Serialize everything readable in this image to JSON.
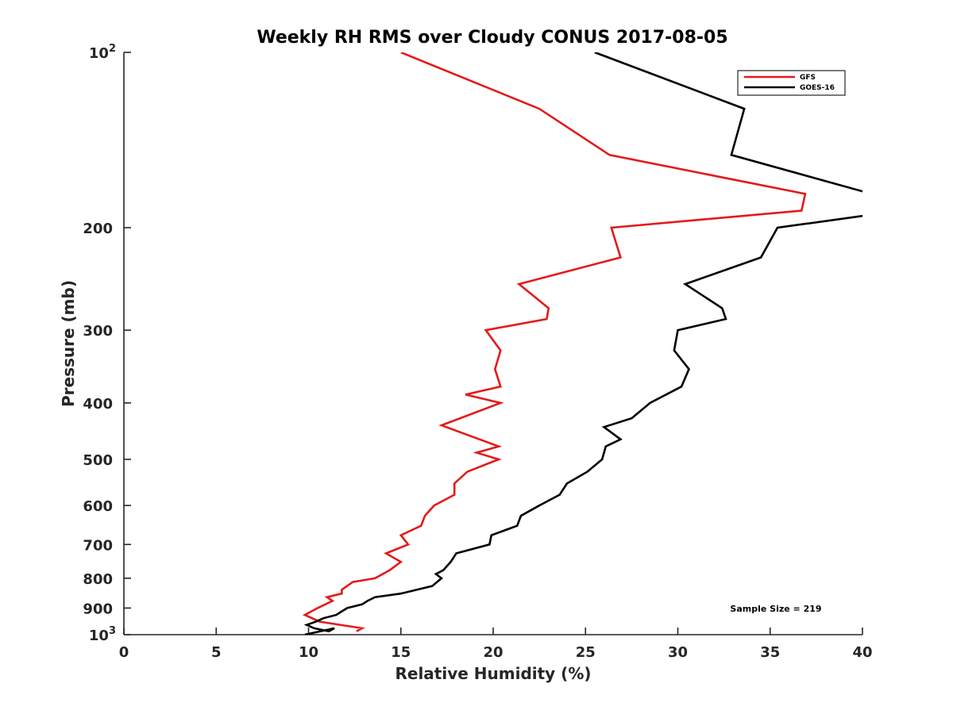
{
  "chart_data": {
    "type": "line",
    "title": "Weekly RH RMS over Cloudy CONUS 2017-08-05",
    "xlabel": "Relative Humidity (%)",
    "ylabel": "Pressure (mb)",
    "xlim": [
      0,
      40
    ],
    "ylim": [
      100,
      1000
    ],
    "yscale": "log",
    "y_reversed": true,
    "grid": false,
    "legend_position": "top-right",
    "x_ticks": [
      "0",
      "5",
      "10",
      "15",
      "20",
      "25",
      "30",
      "35",
      "40"
    ],
    "y_ticks": [
      {
        "value": 100,
        "base": "10",
        "exp": "2"
      },
      {
        "value": 200,
        "label": "200"
      },
      {
        "value": 300,
        "label": "300"
      },
      {
        "value": 400,
        "label": "400"
      },
      {
        "value": 500,
        "label": "500"
      },
      {
        "value": 600,
        "label": "600"
      },
      {
        "value": 700,
        "label": "700"
      },
      {
        "value": 800,
        "label": "800"
      },
      {
        "value": 900,
        "label": "900"
      },
      {
        "value": 1000,
        "base": "10",
        "exp": "3"
      }
    ],
    "annotation": "Sample Size = 219",
    "series": [
      {
        "name": "GFS",
        "color": "#e41a1a",
        "points": [
          [
            15.0,
            100
          ],
          [
            22.5,
            125
          ],
          [
            26.3,
            150
          ],
          [
            36.9,
            175
          ],
          [
            36.7,
            187
          ],
          [
            26.4,
            200
          ],
          [
            26.9,
            225
          ],
          [
            21.4,
            250
          ],
          [
            23.0,
            275
          ],
          [
            22.9,
            287
          ],
          [
            19.6,
            300
          ],
          [
            20.4,
            325
          ],
          [
            20.1,
            350
          ],
          [
            20.4,
            375
          ],
          [
            18.5,
            387
          ],
          [
            20.4,
            400
          ],
          [
            17.2,
            437
          ],
          [
            20.3,
            475
          ],
          [
            19.1,
            487
          ],
          [
            20.3,
            500
          ],
          [
            18.6,
            525
          ],
          [
            17.9,
            550
          ],
          [
            17.9,
            575
          ],
          [
            16.8,
            600
          ],
          [
            16.3,
            625
          ],
          [
            16.1,
            650
          ],
          [
            15.0,
            675
          ],
          [
            15.4,
            700
          ],
          [
            14.2,
            725
          ],
          [
            15.0,
            750
          ],
          [
            14.4,
            775
          ],
          [
            13.6,
            800
          ],
          [
            12.4,
            812
          ],
          [
            11.8,
            837
          ],
          [
            11.8,
            850
          ],
          [
            11.0,
            862
          ],
          [
            11.3,
            875
          ],
          [
            10.5,
            900
          ],
          [
            9.8,
            925
          ],
          [
            10.6,
            950
          ],
          [
            12.9,
            975
          ],
          [
            12.6,
            987
          ]
        ]
      },
      {
        "name": "GOES-16",
        "color": "#000000",
        "points": [
          [
            25.5,
            100
          ],
          [
            33.6,
            125
          ],
          [
            32.9,
            150
          ],
          [
            40.5,
            175
          ],
          [
            40.5,
            190
          ],
          [
            35.4,
            200
          ],
          [
            34.5,
            225
          ],
          [
            30.4,
            250
          ],
          [
            32.4,
            275
          ],
          [
            32.6,
            287
          ],
          [
            30.0,
            300
          ],
          [
            29.8,
            325
          ],
          [
            30.6,
            350
          ],
          [
            30.2,
            375
          ],
          [
            28.5,
            400
          ],
          [
            27.5,
            425
          ],
          [
            26.0,
            440
          ],
          [
            26.9,
            462
          ],
          [
            26.1,
            475
          ],
          [
            25.9,
            500
          ],
          [
            25.1,
            525
          ],
          [
            24.0,
            550
          ],
          [
            23.6,
            575
          ],
          [
            22.5,
            600
          ],
          [
            21.5,
            625
          ],
          [
            21.3,
            650
          ],
          [
            19.9,
            675
          ],
          [
            19.8,
            700
          ],
          [
            18.0,
            725
          ],
          [
            17.7,
            750
          ],
          [
            17.3,
            775
          ],
          [
            16.9,
            787
          ],
          [
            17.2,
            800
          ],
          [
            16.7,
            825
          ],
          [
            15.0,
            850
          ],
          [
            13.6,
            862
          ],
          [
            13.2,
            875
          ],
          [
            12.9,
            887
          ],
          [
            12.1,
            900
          ],
          [
            11.8,
            912
          ],
          [
            11.5,
            925
          ],
          [
            10.8,
            937
          ],
          [
            10.4,
            950
          ],
          [
            9.9,
            962
          ],
          [
            10.3,
            975
          ],
          [
            11.1,
            987
          ],
          [
            11.4,
            975
          ],
          [
            9.8,
            1000
          ]
        ]
      }
    ]
  }
}
